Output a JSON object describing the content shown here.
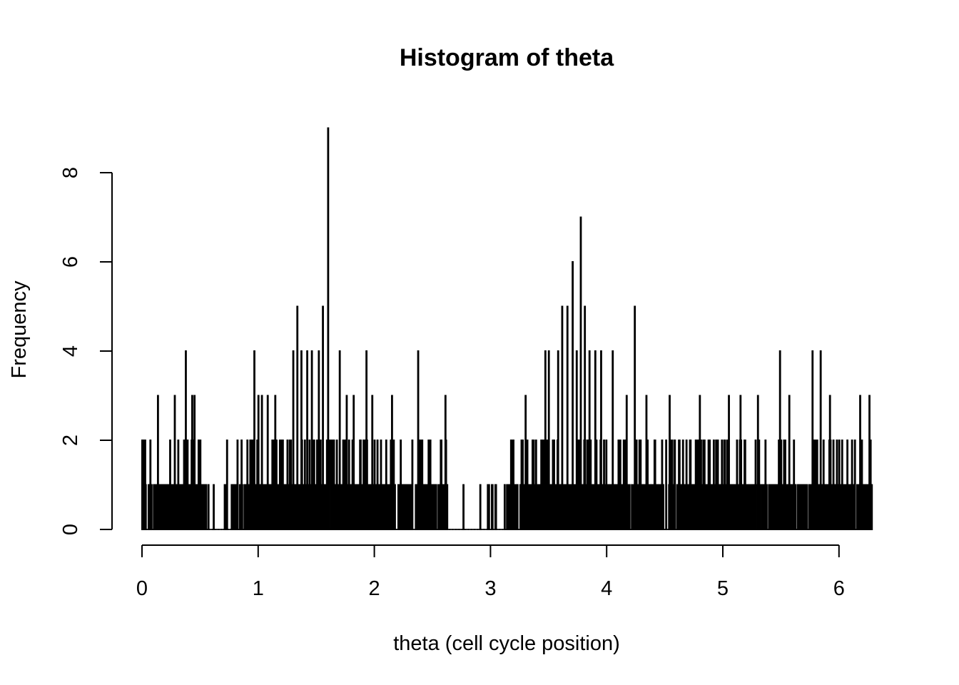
{
  "chart_data": {
    "type": "bar",
    "title": "Histogram of theta",
    "xlabel": "theta (cell cycle position)",
    "ylabel": "Frequency",
    "xlim": [
      0,
      6.2832
    ],
    "ylim": [
      0,
      9
    ],
    "x_ticks": [
      0,
      1,
      2,
      3,
      4,
      5,
      6
    ],
    "y_ticks": [
      0,
      2,
      4,
      6,
      8
    ],
    "grid": false,
    "legend": "none",
    "bin_width": 0.005,
    "bin_start": 0,
    "peaks": [
      {
        "x": 0.135,
        "value": 3
      },
      {
        "x": 0.28,
        "value": 3
      },
      {
        "x": 0.375,
        "value": 4
      },
      {
        "x": 0.43,
        "value": 3
      },
      {
        "x": 0.45,
        "value": 3
      },
      {
        "x": 0.73,
        "value": 2
      },
      {
        "x": 0.82,
        "value": 2
      },
      {
        "x": 0.965,
        "value": 4
      },
      {
        "x": 1.0,
        "value": 3
      },
      {
        "x": 1.03,
        "value": 3
      },
      {
        "x": 1.08,
        "value": 3
      },
      {
        "x": 1.145,
        "value": 3
      },
      {
        "x": 1.3,
        "value": 4
      },
      {
        "x": 1.335,
        "value": 5
      },
      {
        "x": 1.37,
        "value": 4
      },
      {
        "x": 1.42,
        "value": 4
      },
      {
        "x": 1.46,
        "value": 4
      },
      {
        "x": 1.52,
        "value": 4
      },
      {
        "x": 1.555,
        "value": 5
      },
      {
        "x": 1.6,
        "value": 9
      },
      {
        "x": 1.7,
        "value": 4
      },
      {
        "x": 1.76,
        "value": 3
      },
      {
        "x": 1.82,
        "value": 3
      },
      {
        "x": 1.93,
        "value": 4
      },
      {
        "x": 1.98,
        "value": 3
      },
      {
        "x": 2.15,
        "value": 3
      },
      {
        "x": 2.38,
        "value": 4
      },
      {
        "x": 2.61,
        "value": 3
      },
      {
        "x": 3.3,
        "value": 3
      },
      {
        "x": 3.47,
        "value": 4
      },
      {
        "x": 3.5,
        "value": 4
      },
      {
        "x": 3.58,
        "value": 4
      },
      {
        "x": 3.615,
        "value": 5
      },
      {
        "x": 3.66,
        "value": 5
      },
      {
        "x": 3.705,
        "value": 6
      },
      {
        "x": 3.74,
        "value": 4
      },
      {
        "x": 3.775,
        "value": 7
      },
      {
        "x": 3.81,
        "value": 5
      },
      {
        "x": 3.85,
        "value": 4
      },
      {
        "x": 3.9,
        "value": 4
      },
      {
        "x": 3.95,
        "value": 4
      },
      {
        "x": 4.05,
        "value": 4
      },
      {
        "x": 4.24,
        "value": 5
      },
      {
        "x": 4.17,
        "value": 3
      },
      {
        "x": 4.34,
        "value": 3
      },
      {
        "x": 4.54,
        "value": 3
      },
      {
        "x": 4.8,
        "value": 3
      },
      {
        "x": 5.05,
        "value": 3
      },
      {
        "x": 5.15,
        "value": 3
      },
      {
        "x": 5.3,
        "value": 3
      },
      {
        "x": 5.49,
        "value": 4
      },
      {
        "x": 5.57,
        "value": 3
      },
      {
        "x": 5.77,
        "value": 4
      },
      {
        "x": 5.84,
        "value": 4
      },
      {
        "x": 5.92,
        "value": 3
      },
      {
        "x": 6.18,
        "value": 3
      },
      {
        "x": 6.26,
        "value": 3
      }
    ],
    "gaps": [
      [
        0.6,
        0.7
      ],
      [
        2.62,
        2.98
      ],
      [
        3.05,
        3.1
      ]
    ],
    "density_regions": [
      {
        "from": 0.0,
        "to": 0.55,
        "level": 0.75
      },
      {
        "from": 0.55,
        "to": 0.9,
        "level": 0.35
      },
      {
        "from": 0.9,
        "to": 2.15,
        "level": 0.9
      },
      {
        "from": 2.15,
        "to": 2.62,
        "level": 0.6
      },
      {
        "from": 2.98,
        "to": 3.3,
        "level": 0.5
      },
      {
        "from": 3.3,
        "to": 4.1,
        "level": 0.95
      },
      {
        "from": 4.1,
        "to": 6.2832,
        "level": 0.75
      }
    ]
  }
}
